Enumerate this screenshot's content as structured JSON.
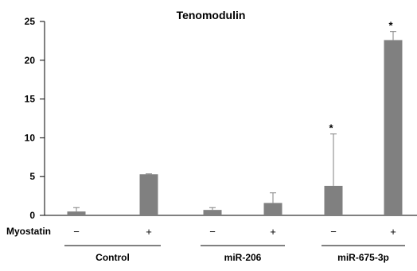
{
  "chart_data": {
    "type": "bar",
    "title": "Tenomodulin",
    "ylim": [
      0,
      25
    ],
    "yticks": [
      0,
      5,
      10,
      15,
      20,
      25
    ],
    "grid": false,
    "legend": "none",
    "row_label": "Myostatin",
    "groups": [
      "Control",
      "miR-206",
      "miR-675-3p"
    ],
    "categories": [
      "−",
      "+",
      "−",
      "+",
      "−",
      "+"
    ],
    "values": [
      0.5,
      5.3,
      0.7,
      1.6,
      3.8,
      22.6
    ],
    "errors": [
      0.5,
      0.05,
      0.3,
      1.3,
      6.7,
      1.1
    ],
    "significance": [
      "",
      "",
      "",
      "",
      "*",
      "*"
    ],
    "bar_color": "#808080"
  }
}
